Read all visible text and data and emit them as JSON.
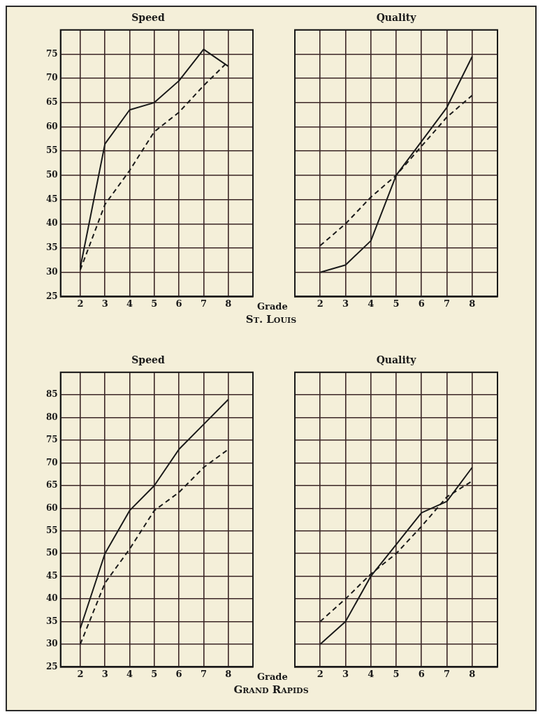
{
  "chart_data": [
    {
      "type": "line",
      "title": "Speed",
      "xlabel": "Grade",
      "annotations": [
        "St. Louis"
      ],
      "x": [
        2,
        3,
        4,
        5,
        6,
        7,
        8
      ],
      "xlim": [
        1.2,
        9
      ],
      "xticks": [
        2,
        3,
        4,
        5,
        6,
        7,
        8
      ],
      "ylim": [
        25,
        80
      ],
      "yticks": [
        25,
        30,
        35,
        40,
        45,
        50,
        55,
        60,
        65,
        70,
        75,
        {
          "value": 80,
          "label": null
        }
      ],
      "grid": true,
      "marker": "none",
      "series": [
        {
          "color": "#1a1a1a",
          "line_style": "solid",
          "values": [
            31,
            56.5,
            63.5,
            65,
            69.5,
            76,
            72.5
          ]
        },
        {
          "color": "#1a1a1a",
          "line_style": "dashed",
          "values": [
            30.5,
            44,
            51,
            59,
            63,
            68.5,
            73.5
          ]
        }
      ]
    },
    {
      "type": "line",
      "title": "Quality",
      "x": [
        2,
        3,
        4,
        5,
        6,
        7,
        8
      ],
      "xlim": [
        1,
        9
      ],
      "xticks": [
        2,
        3,
        4,
        5,
        6,
        7,
        8
      ],
      "ylim": [
        25,
        80
      ],
      "yticks": [
        25,
        30,
        35,
        40,
        45,
        50,
        55,
        60,
        65,
        70,
        75,
        80
      ],
      "tick_labels": "x",
      "grid": true,
      "marker": "none",
      "series": [
        {
          "color": "#1a1a1a",
          "line_style": "solid",
          "values": [
            30,
            31.5,
            36.5,
            50,
            57,
            64,
            74.5
          ]
        },
        {
          "color": "#1a1a1a",
          "line_style": "dashed",
          "values": [
            35.5,
            40,
            45.5,
            50,
            56,
            62,
            66.5
          ]
        }
      ]
    },
    {
      "type": "line",
      "title": "Speed",
      "xlabel": "Grade",
      "annotations": [
        "Grand Rapids"
      ],
      "x": [
        2,
        3,
        4,
        5,
        6,
        7,
        8
      ],
      "xlim": [
        1.2,
        9
      ],
      "xticks": [
        2,
        3,
        4,
        5,
        6,
        7,
        8
      ],
      "ylim": [
        25,
        90
      ],
      "yticks": [
        25,
        30,
        35,
        40,
        45,
        50,
        55,
        60,
        65,
        70,
        75,
        80,
        85,
        {
          "value": 90,
          "label": null
        }
      ],
      "grid": true,
      "marker": "none",
      "series": [
        {
          "color": "#1a1a1a",
          "line_style": "solid",
          "values": [
            33.5,
            50,
            59.5,
            65,
            73,
            78.5,
            84
          ]
        },
        {
          "color": "#1a1a1a",
          "line_style": "dashed",
          "values": [
            30,
            43.5,
            51,
            59.5,
            63.5,
            69,
            73
          ]
        }
      ]
    },
    {
      "type": "line",
      "title": "Quality",
      "x": [
        2,
        3,
        4,
        5,
        6,
        7,
        8
      ],
      "xlim": [
        1,
        9
      ],
      "xticks": [
        2,
        3,
        4,
        5,
        6,
        7,
        8
      ],
      "ylim": [
        25,
        90
      ],
      "yticks": [
        25,
        30,
        35,
        40,
        45,
        50,
        55,
        60,
        65,
        70,
        75,
        80,
        85,
        90
      ],
      "tick_labels": "x",
      "grid": true,
      "marker": "none",
      "series": [
        {
          "color": "#1a1a1a",
          "line_style": "solid",
          "values": [
            30,
            35,
            45,
            52,
            59,
            61.5,
            69
          ]
        },
        {
          "color": "#1a1a1a",
          "line_style": "dashed",
          "values": [
            35,
            40,
            45.5,
            50,
            56,
            62.5,
            66
          ]
        }
      ]
    }
  ]
}
